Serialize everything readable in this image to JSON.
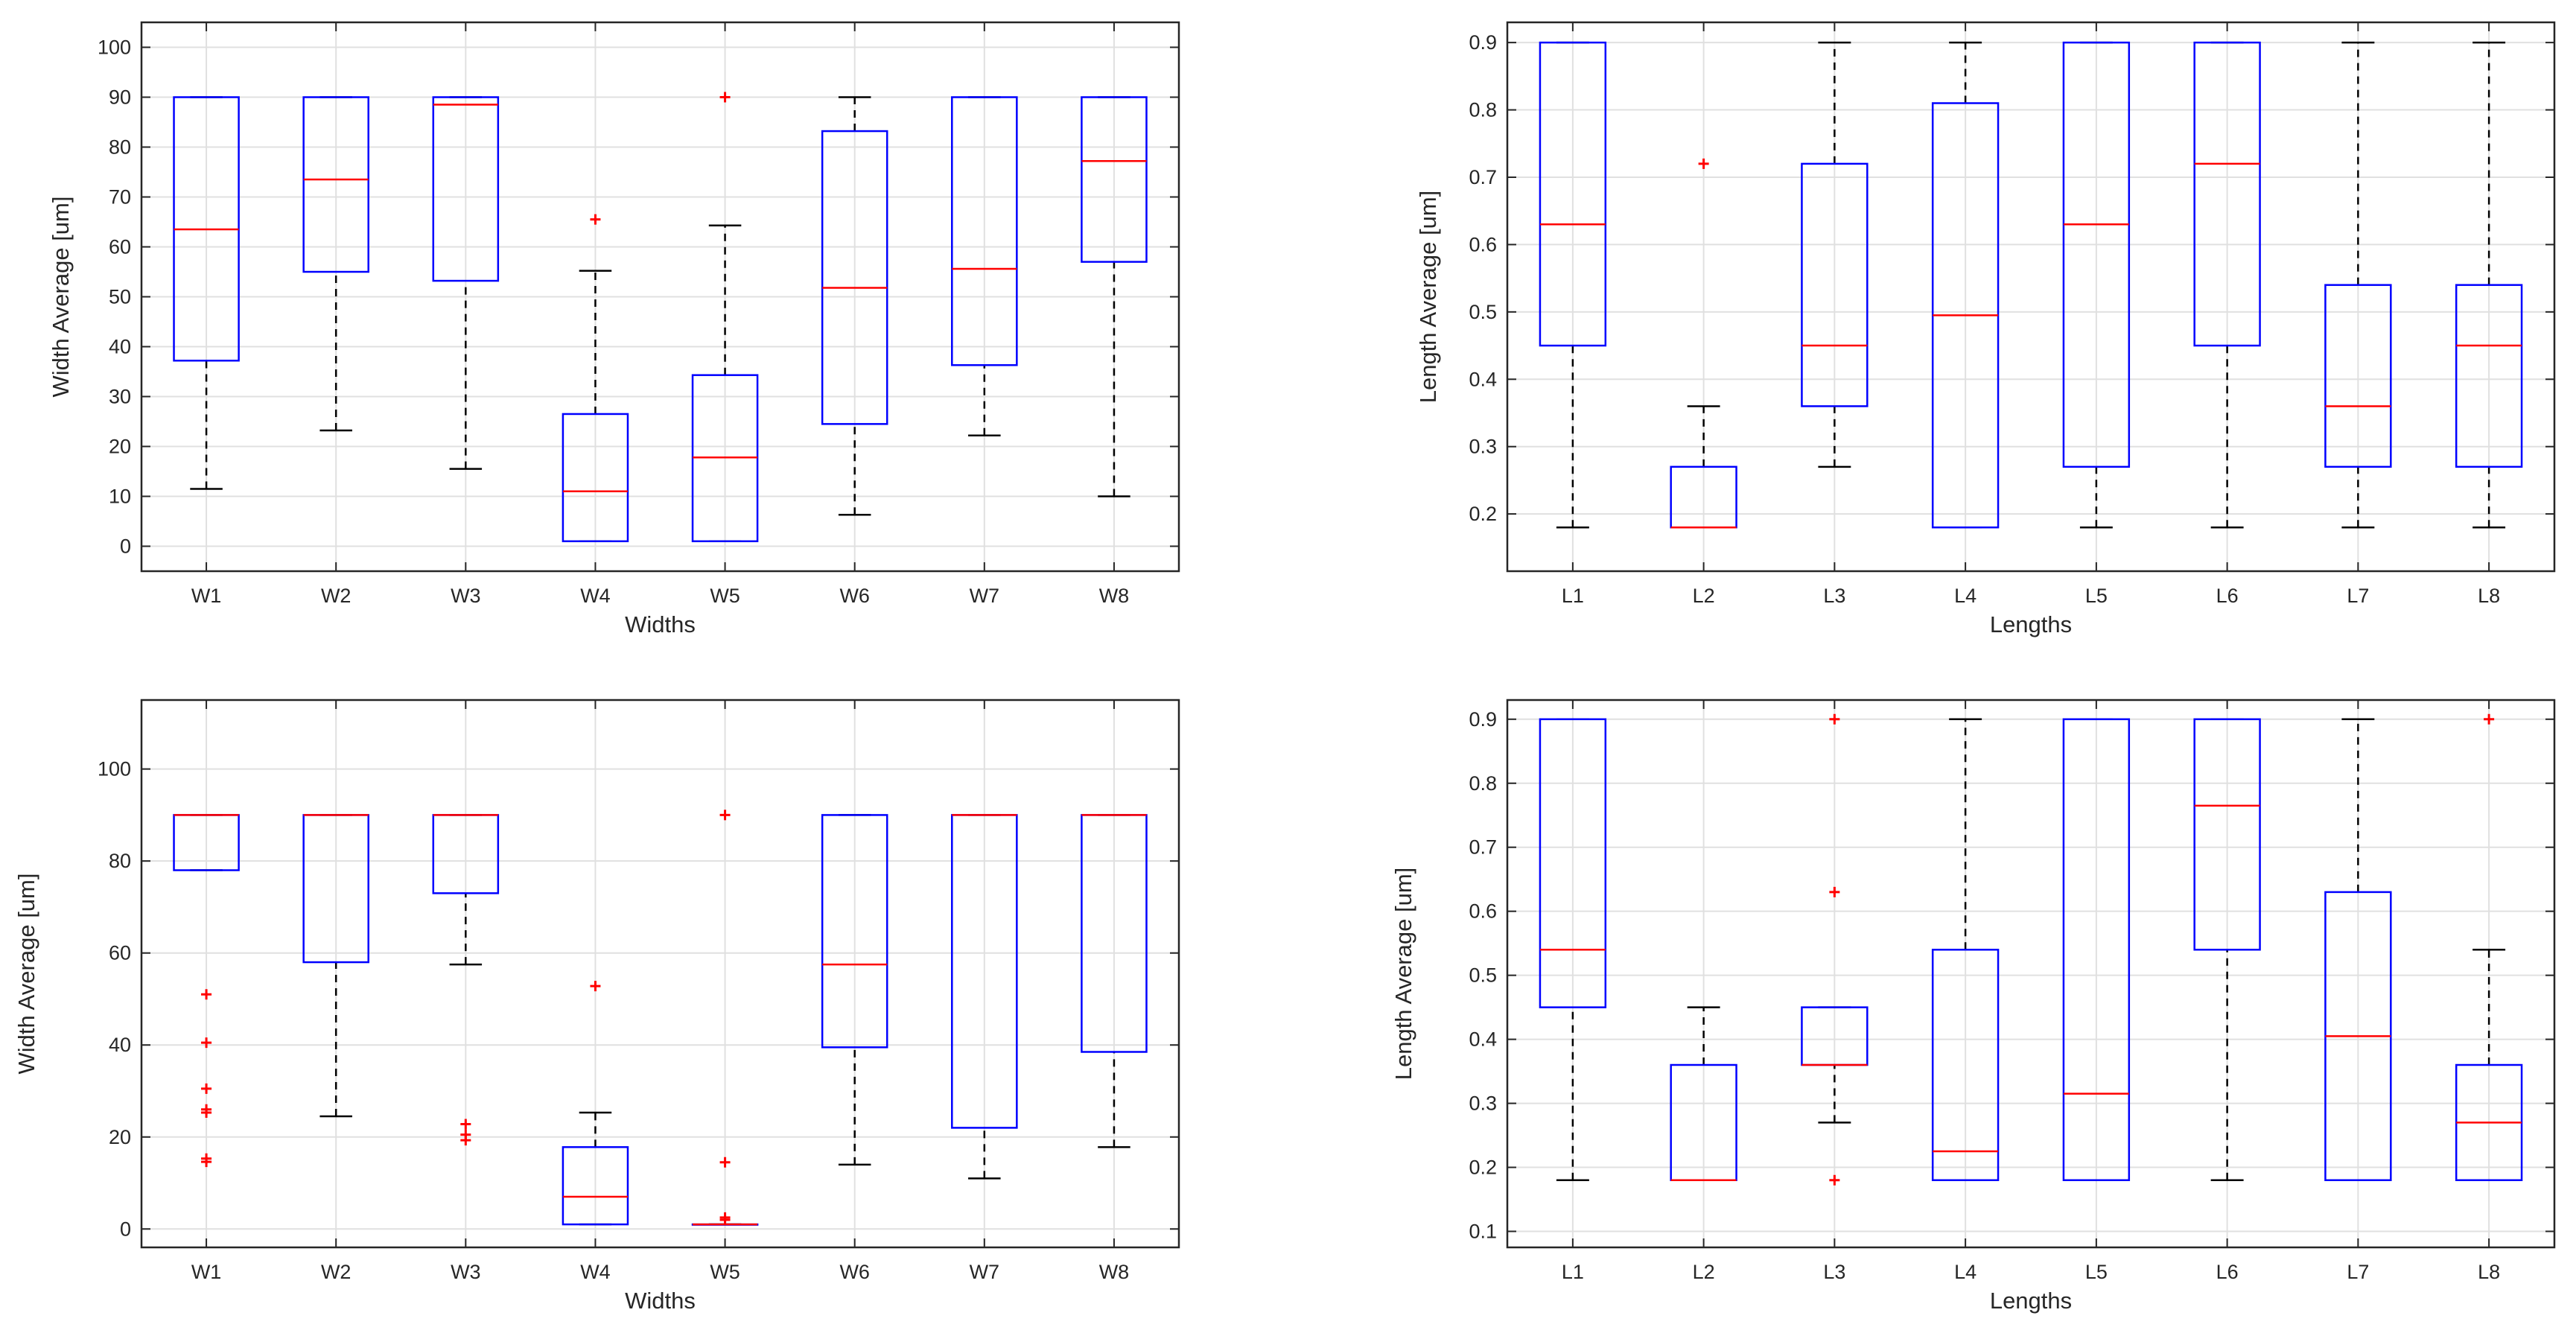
{
  "chart_data": [
    {
      "type": "box",
      "title": "",
      "xlabel": "Widths",
      "ylabel": "Width Average [um]",
      "ylim": [
        -5,
        105
      ],
      "yticks": [
        0,
        10,
        20,
        30,
        40,
        50,
        60,
        70,
        80,
        90,
        100
      ],
      "categories": [
        "W1",
        "W2",
        "W3",
        "W4",
        "W5",
        "W6",
        "W7",
        "W8"
      ],
      "boxes": [
        {
          "low": 11.5,
          "q1": 37.2,
          "median": 63.5,
          "q3": 90,
          "high": 90,
          "outliers": []
        },
        {
          "low": 23.2,
          "q1": 55,
          "median": 73.5,
          "q3": 90,
          "high": 90,
          "outliers": []
        },
        {
          "low": 15.5,
          "q1": 53.2,
          "median": 88.5,
          "q3": 90,
          "high": 90,
          "outliers": []
        },
        {
          "low": 1,
          "q1": 1,
          "median": 11,
          "q3": 26.5,
          "high": 55.2,
          "outliers": [
            65.5
          ]
        },
        {
          "low": 1,
          "q1": 1,
          "median": 17.8,
          "q3": 34.3,
          "high": 64.3,
          "outliers": [
            90
          ]
        },
        {
          "low": 6.3,
          "q1": 24.5,
          "median": 51.8,
          "q3": 83.2,
          "high": 90,
          "outliers": []
        },
        {
          "low": 22.2,
          "q1": 36.3,
          "median": 55.6,
          "q3": 90,
          "high": 90,
          "outliers": []
        },
        {
          "low": 10,
          "q1": 57,
          "median": 77.2,
          "q3": 90,
          "high": 90,
          "outliers": []
        }
      ]
    },
    {
      "type": "box",
      "title": "",
      "xlabel": "Lengths",
      "ylabel": "Length Average [um]",
      "ylim": [
        0.115,
        0.93
      ],
      "yticks": [
        0.2,
        0.3,
        0.4,
        0.5,
        0.6,
        0.7,
        0.8,
        0.9
      ],
      "yticklabels": [
        "0.2",
        "0.3",
        "0.4",
        "0.5",
        "0.6",
        "0.7",
        "0.8",
        "0.9"
      ],
      "categories": [
        "L1",
        "L2",
        "L3",
        "L4",
        "L5",
        "L6",
        "L7",
        "L8"
      ],
      "boxes": [
        {
          "low": 0.18,
          "q1": 0.45,
          "median": 0.63,
          "q3": 0.9,
          "high": 0.9,
          "outliers": []
        },
        {
          "low": 0.18,
          "q1": 0.18,
          "median": 0.18,
          "q3": 0.27,
          "high": 0.36,
          "outliers": [
            0.72
          ]
        },
        {
          "low": 0.27,
          "q1": 0.36,
          "median": 0.45,
          "q3": 0.72,
          "high": 0.9,
          "outliers": []
        },
        {
          "low": 0.18,
          "q1": 0.18,
          "median": 0.495,
          "q3": 0.81,
          "high": 0.9,
          "outliers": []
        },
        {
          "low": 0.18,
          "q1": 0.27,
          "median": 0.63,
          "q3": 0.9,
          "high": 0.9,
          "outliers": []
        },
        {
          "low": 0.18,
          "q1": 0.45,
          "median": 0.72,
          "q3": 0.9,
          "high": 0.9,
          "outliers": []
        },
        {
          "low": 0.18,
          "q1": 0.27,
          "median": 0.36,
          "q3": 0.54,
          "high": 0.9,
          "outliers": []
        },
        {
          "low": 0.18,
          "q1": 0.27,
          "median": 0.45,
          "q3": 0.54,
          "high": 0.9,
          "outliers": []
        }
      ]
    },
    {
      "type": "box",
      "title": "",
      "xlabel": "Widths",
      "ylabel": "Width Average [um]",
      "ylim": [
        -4,
        115
      ],
      "yticks": [
        0,
        20,
        40,
        60,
        80,
        100
      ],
      "categories": [
        "W1",
        "W2",
        "W3",
        "W4",
        "W5",
        "W6",
        "W7",
        "W8"
      ],
      "boxes": [
        {
          "low": 78,
          "q1": 78,
          "median": 90,
          "q3": 90,
          "high": 90,
          "outliers": [
            51,
            40.5,
            30.5,
            26,
            25.3,
            15.3,
            14.6
          ]
        },
        {
          "low": 24.5,
          "q1": 58,
          "median": 90,
          "q3": 90,
          "high": 90,
          "outliers": []
        },
        {
          "low": 57.5,
          "q1": 73,
          "median": 90,
          "q3": 90,
          "high": 90,
          "outliers": [
            22.8,
            20.5,
            19.3
          ]
        },
        {
          "low": 1,
          "q1": 1,
          "median": 7,
          "q3": 17.8,
          "high": 25.3,
          "outliers": [
            52.8
          ]
        },
        {
          "low": 1,
          "q1": 1,
          "median": 1,
          "q3": 1,
          "high": 1,
          "outliers": [
            90,
            14.5,
            2.5,
            2
          ]
        },
        {
          "low": 14,
          "q1": 39.5,
          "median": 57.5,
          "q3": 90,
          "high": 90,
          "outliers": []
        },
        {
          "low": 11,
          "q1": 22,
          "median": 90,
          "q3": 90,
          "high": 90,
          "outliers": []
        },
        {
          "low": 17.8,
          "q1": 38.5,
          "median": 90,
          "q3": 90,
          "high": 90,
          "outliers": []
        }
      ]
    },
    {
      "type": "box",
      "title": "",
      "xlabel": "Lengths",
      "ylabel": "Length Average [um]",
      "ylim": [
        0.075,
        0.93
      ],
      "yticks": [
        0.1,
        0.2,
        0.3,
        0.4,
        0.5,
        0.6,
        0.7,
        0.8,
        0.9
      ],
      "yticklabels": [
        "0.1",
        "0.2",
        "0.3",
        "0.4",
        "0.5",
        "0.6",
        "0.7",
        "0.8",
        "0.9"
      ],
      "categories": [
        "L1",
        "L2",
        "L3",
        "L4",
        "L5",
        "L6",
        "L7",
        "L8"
      ],
      "boxes": [
        {
          "low": 0.18,
          "q1": 0.45,
          "median": 0.54,
          "q3": 0.9,
          "high": 0.9,
          "outliers": []
        },
        {
          "low": 0.18,
          "q1": 0.18,
          "median": 0.18,
          "q3": 0.36,
          "high": 0.45,
          "outliers": []
        },
        {
          "low": 0.27,
          "q1": 0.36,
          "median": 0.36,
          "q3": 0.45,
          "high": 0.45,
          "outliers": [
            0.9,
            0.63,
            0.18
          ]
        },
        {
          "low": 0.18,
          "q1": 0.18,
          "median": 0.225,
          "q3": 0.54,
          "high": 0.9,
          "outliers": []
        },
        {
          "low": 0.18,
          "q1": 0.18,
          "median": 0.315,
          "q3": 0.9,
          "high": 0.9,
          "outliers": []
        },
        {
          "low": 0.18,
          "q1": 0.54,
          "median": 0.765,
          "q3": 0.9,
          "high": 0.9,
          "outliers": []
        },
        {
          "low": 0.18,
          "q1": 0.18,
          "median": 0.405,
          "q3": 0.63,
          "high": 0.9,
          "outliers": []
        },
        {
          "low": 0.18,
          "q1": 0.18,
          "median": 0.27,
          "q3": 0.36,
          "high": 0.54,
          "outliers": [
            0.9
          ]
        }
      ]
    }
  ],
  "colors": {
    "box": "#0000ff",
    "median": "#ff0000",
    "whisker": "#000000",
    "outlier": "#ff0000",
    "grid": "#e0e0e0",
    "axes": "#262626"
  }
}
